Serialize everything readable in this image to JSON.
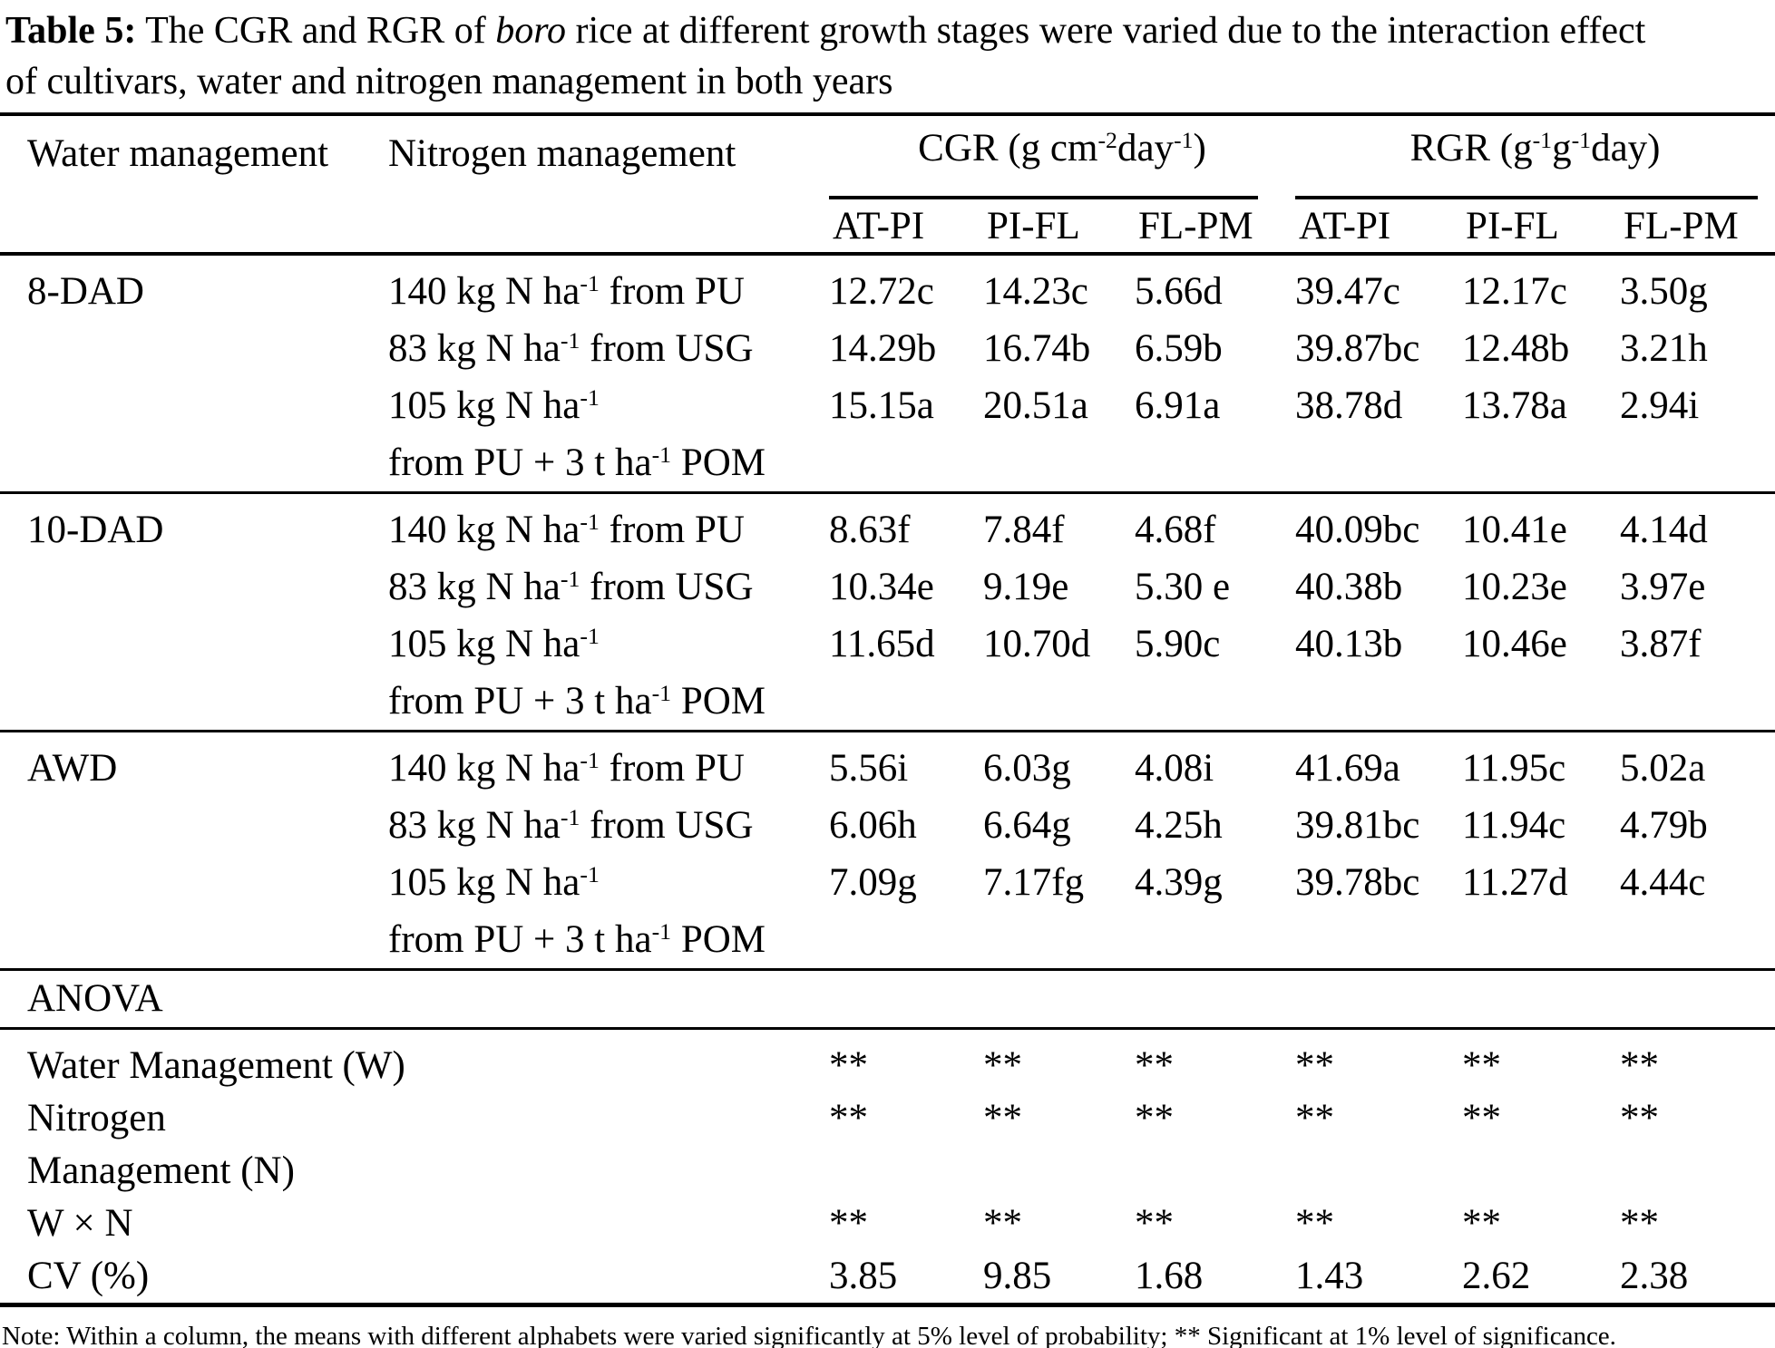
{
  "title": "{b}Table 5:{/b}  The CGR and RGR of {i}boro{/i} rice at different growth stages were varied due to the interaction effect{br}of cultivars, water and nitrogen management in both years",
  "columns": {
    "water": "Water management",
    "nitrogen": "Nitrogen management",
    "groups": [
      {
        "key": "cgr",
        "label": "CGR (g cm{sup}-2{/sup}day{sup}-1{/sup})",
        "subs": [
          "AT-PI",
          "PI-FL",
          "FL-PM"
        ]
      },
      {
        "key": "rgr",
        "label": "RGR (g{sup}-1{/sup}g{sup}-1{/sup}day)",
        "subs": [
          "AT-PI",
          "PI-FL",
          "FL-PM"
        ]
      }
    ]
  },
  "body_groups": [
    {
      "water": "8-DAD",
      "rows": [
        {
          "nitrogen": "140 kg N ha{sup}-1{/sup} from PU",
          "values": [
            "12.72c",
            "14.23c",
            "5.66d",
            "39.47c",
            "12.17c",
            "3.50g"
          ]
        },
        {
          "nitrogen": "83 kg N ha{sup}-1{/sup} from USG",
          "values": [
            "14.29b",
            "16.74b",
            "6.59b",
            "39.87bc",
            "12.48b",
            "3.21h"
          ]
        },
        {
          "nitrogen": "105 kg N ha{sup}-1{/sup}{br}from PU + 3 t ha{sup}-1{/sup} POM",
          "values": [
            "15.15a",
            "20.51a",
            "6.91a",
            "38.78d",
            "13.78a",
            "2.94i"
          ]
        }
      ]
    },
    {
      "water": "10-DAD",
      "rows": [
        {
          "nitrogen": "140 kg N ha{sup}-1{/sup} from PU",
          "values": [
            "8.63f",
            "7.84f",
            "4.68f",
            "40.09bc",
            "10.41e",
            "4.14d"
          ]
        },
        {
          "nitrogen": "83 kg N ha{sup}-1{/sup} from USG",
          "values": [
            "10.34e",
            "9.19e",
            "5.30 e",
            "40.38b",
            "10.23e",
            "3.97e"
          ]
        },
        {
          "nitrogen": "105 kg N ha{sup}-1{/sup}{br}from PU + 3 t ha{sup}-1{/sup} POM",
          "values": [
            "11.65d",
            "10.70d",
            "5.90c",
            "40.13b",
            "10.46e",
            "3.87f"
          ]
        }
      ]
    },
    {
      "water": "AWD",
      "rows": [
        {
          "nitrogen": "140 kg N ha{sup}-1{/sup} from PU",
          "values": [
            "5.56i",
            "6.03g",
            "4.08i",
            "41.69a",
            "11.95c",
            "5.02a"
          ]
        },
        {
          "nitrogen": "83 kg N ha{sup}-1{/sup} from USG",
          "values": [
            "6.06h",
            "6.64g",
            "4.25h",
            "39.81bc",
            "11.94c",
            "4.79b"
          ]
        },
        {
          "nitrogen": "105 kg N ha{sup}-1{/sup}{br}from PU + 3 t ha{sup}-1{/sup} POM",
          "values": [
            "7.09g",
            "7.17fg",
            "4.39g",
            "39.78bc",
            "11.27d",
            "4.44c"
          ]
        }
      ]
    }
  ],
  "anova": {
    "header": "ANOVA",
    "rows": [
      {
        "label": "Water Management (W)",
        "values": [
          "**",
          "**",
          "**",
          "**",
          "**",
          "**"
        ]
      },
      {
        "label": "Nitrogen{br}Management (N)",
        "values": [
          "**",
          "**",
          "**",
          "**",
          "**",
          "**"
        ]
      },
      {
        "label": "W × N",
        "values": [
          "**",
          "**",
          "**",
          "**",
          "**",
          "**"
        ]
      },
      {
        "label": "CV (%)",
        "values": [
          "3.85",
          "9.85",
          "1.68",
          "1.43",
          "2.62",
          "2.38"
        ]
      }
    ]
  },
  "note": "Note: Within a column, the means with different alphabets were varied significantly at 5% level of probability; ** Significant at 1% level of significance.",
  "colors": {
    "text": "#000000",
    "background": "#ffffff",
    "rule": "#000000"
  }
}
